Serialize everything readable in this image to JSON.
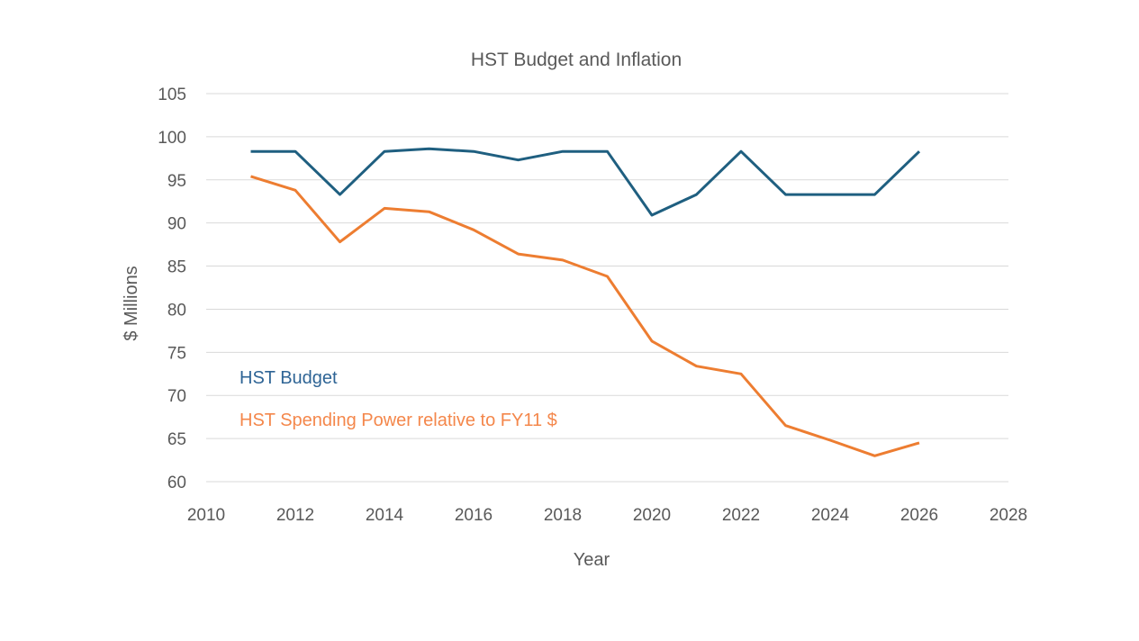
{
  "chart_data": {
    "type": "line",
    "title": "HST Budget and Inflation",
    "xlabel": "Year",
    "ylabel": "$ Millions",
    "xlim": [
      2010,
      2028
    ],
    "ylim": [
      60,
      105
    ],
    "x_ticks": [
      2010,
      2012,
      2014,
      2016,
      2018,
      2020,
      2022,
      2024,
      2026,
      2028
    ],
    "y_ticks": [
      60,
      65,
      70,
      75,
      80,
      85,
      90,
      95,
      100,
      105
    ],
    "grid": true,
    "legend": "inline-annotations-bottom-left",
    "x": [
      2011,
      2012,
      2013,
      2014,
      2015,
      2016,
      2017,
      2018,
      2019,
      2020,
      2021,
      2022,
      2023,
      2024,
      2025,
      2026
    ],
    "series": [
      {
        "name": "HST Budget",
        "color": "#1f5f80",
        "label_color": "#2e6495",
        "values": [
          98.3,
          98.3,
          93.3,
          98.3,
          98.6,
          98.3,
          97.3,
          98.3,
          98.3,
          90.9,
          93.3,
          98.3,
          93.3,
          93.3,
          93.3,
          98.3
        ]
      },
      {
        "name": "HST Spending Power relative to FY11 $",
        "color": "#ed7d31",
        "label_color": "#f4874b",
        "values": [
          95.4,
          93.8,
          87.8,
          91.7,
          91.3,
          89.2,
          86.4,
          85.7,
          83.8,
          76.3,
          73.4,
          72.5,
          66.5,
          64.8,
          63.0,
          64.5
        ]
      }
    ]
  }
}
